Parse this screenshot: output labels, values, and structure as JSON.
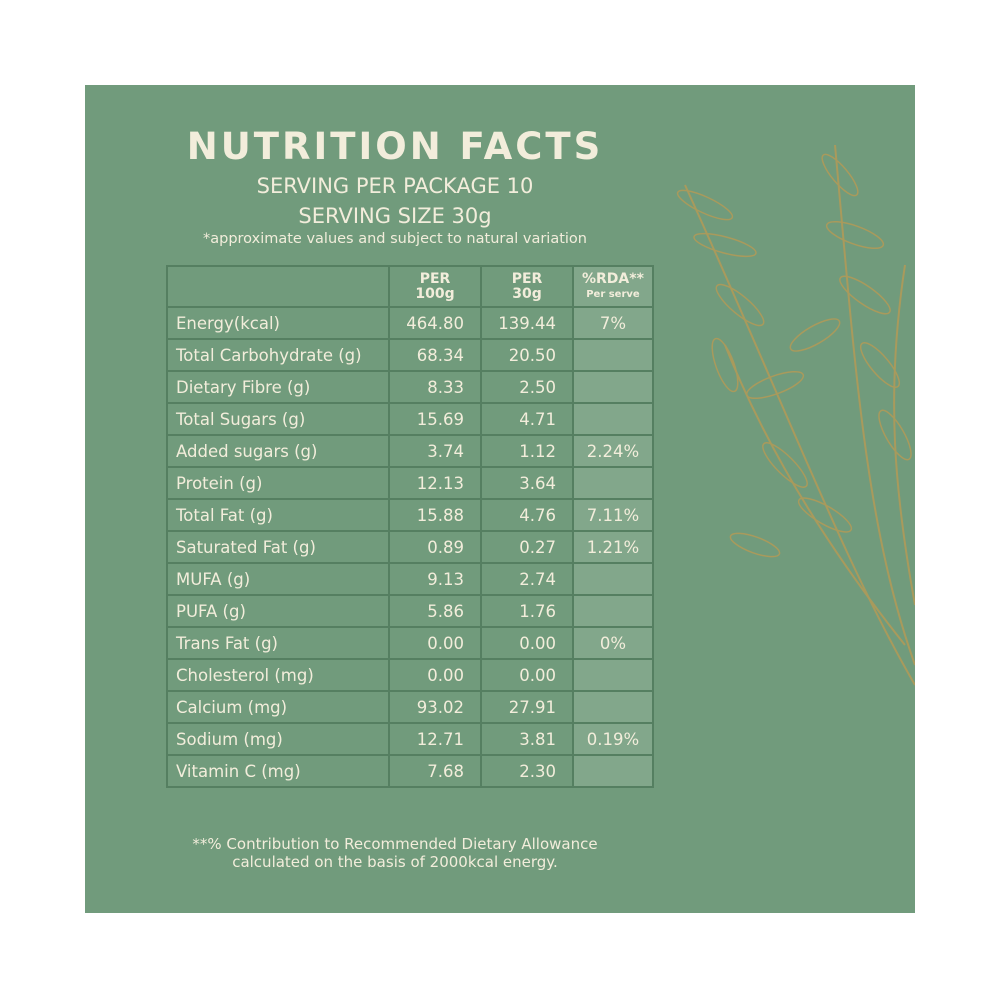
{
  "header": {
    "title": "NUTRITION FACTS",
    "servings": "SERVING PER PACKAGE 10",
    "serving_size": "SERVING SIZE 30g",
    "note": "*approximate values and subject to natural variation"
  },
  "table": {
    "columns": [
      [
        "PER",
        "100g"
      ],
      [
        "PER",
        "30g"
      ],
      [
        "%RDA**",
        "Per serve"
      ]
    ],
    "rows": [
      [
        "Energy(kcal)",
        "464.80",
        "139.44",
        "7%"
      ],
      [
        "Total Carbohydrate (g)",
        "68.34",
        "20.50",
        null
      ],
      [
        "Dietary Fibre (g)",
        "8.33",
        "2.50",
        null
      ],
      [
        "Total Sugars (g)",
        "15.69",
        "4.71",
        null
      ],
      [
        "Added sugars (g)",
        "3.74",
        "1.12",
        "2.24%"
      ],
      [
        "Protein (g)",
        "12.13",
        "3.64",
        null
      ],
      [
        "Total Fat (g)",
        "15.88",
        "4.76",
        "7.11%"
      ],
      [
        "Saturated Fat (g)",
        "0.89",
        "0.27",
        "1.21%"
      ],
      [
        "MUFA (g)",
        "9.13",
        "2.74",
        null
      ],
      [
        "PUFA (g)",
        "5.86",
        "1.76",
        null
      ],
      [
        "Trans Fat (g)",
        "0.00",
        "0.00",
        "0%"
      ],
      [
        "Cholesterol (mg)",
        "0.00",
        "0.00",
        null
      ],
      [
        "Calcium (mg)",
        "93.02",
        "27.91",
        null
      ],
      [
        "Sodium (mg)",
        "12.71",
        "3.81",
        "0.19%"
      ],
      [
        "Vitamin C (mg)",
        "7.68",
        "2.30",
        null
      ]
    ]
  },
  "footer": [
    "**% Contribution to Recommended Dietary Allowance",
    "calculated on the basis of 2000kcal energy."
  ]
}
